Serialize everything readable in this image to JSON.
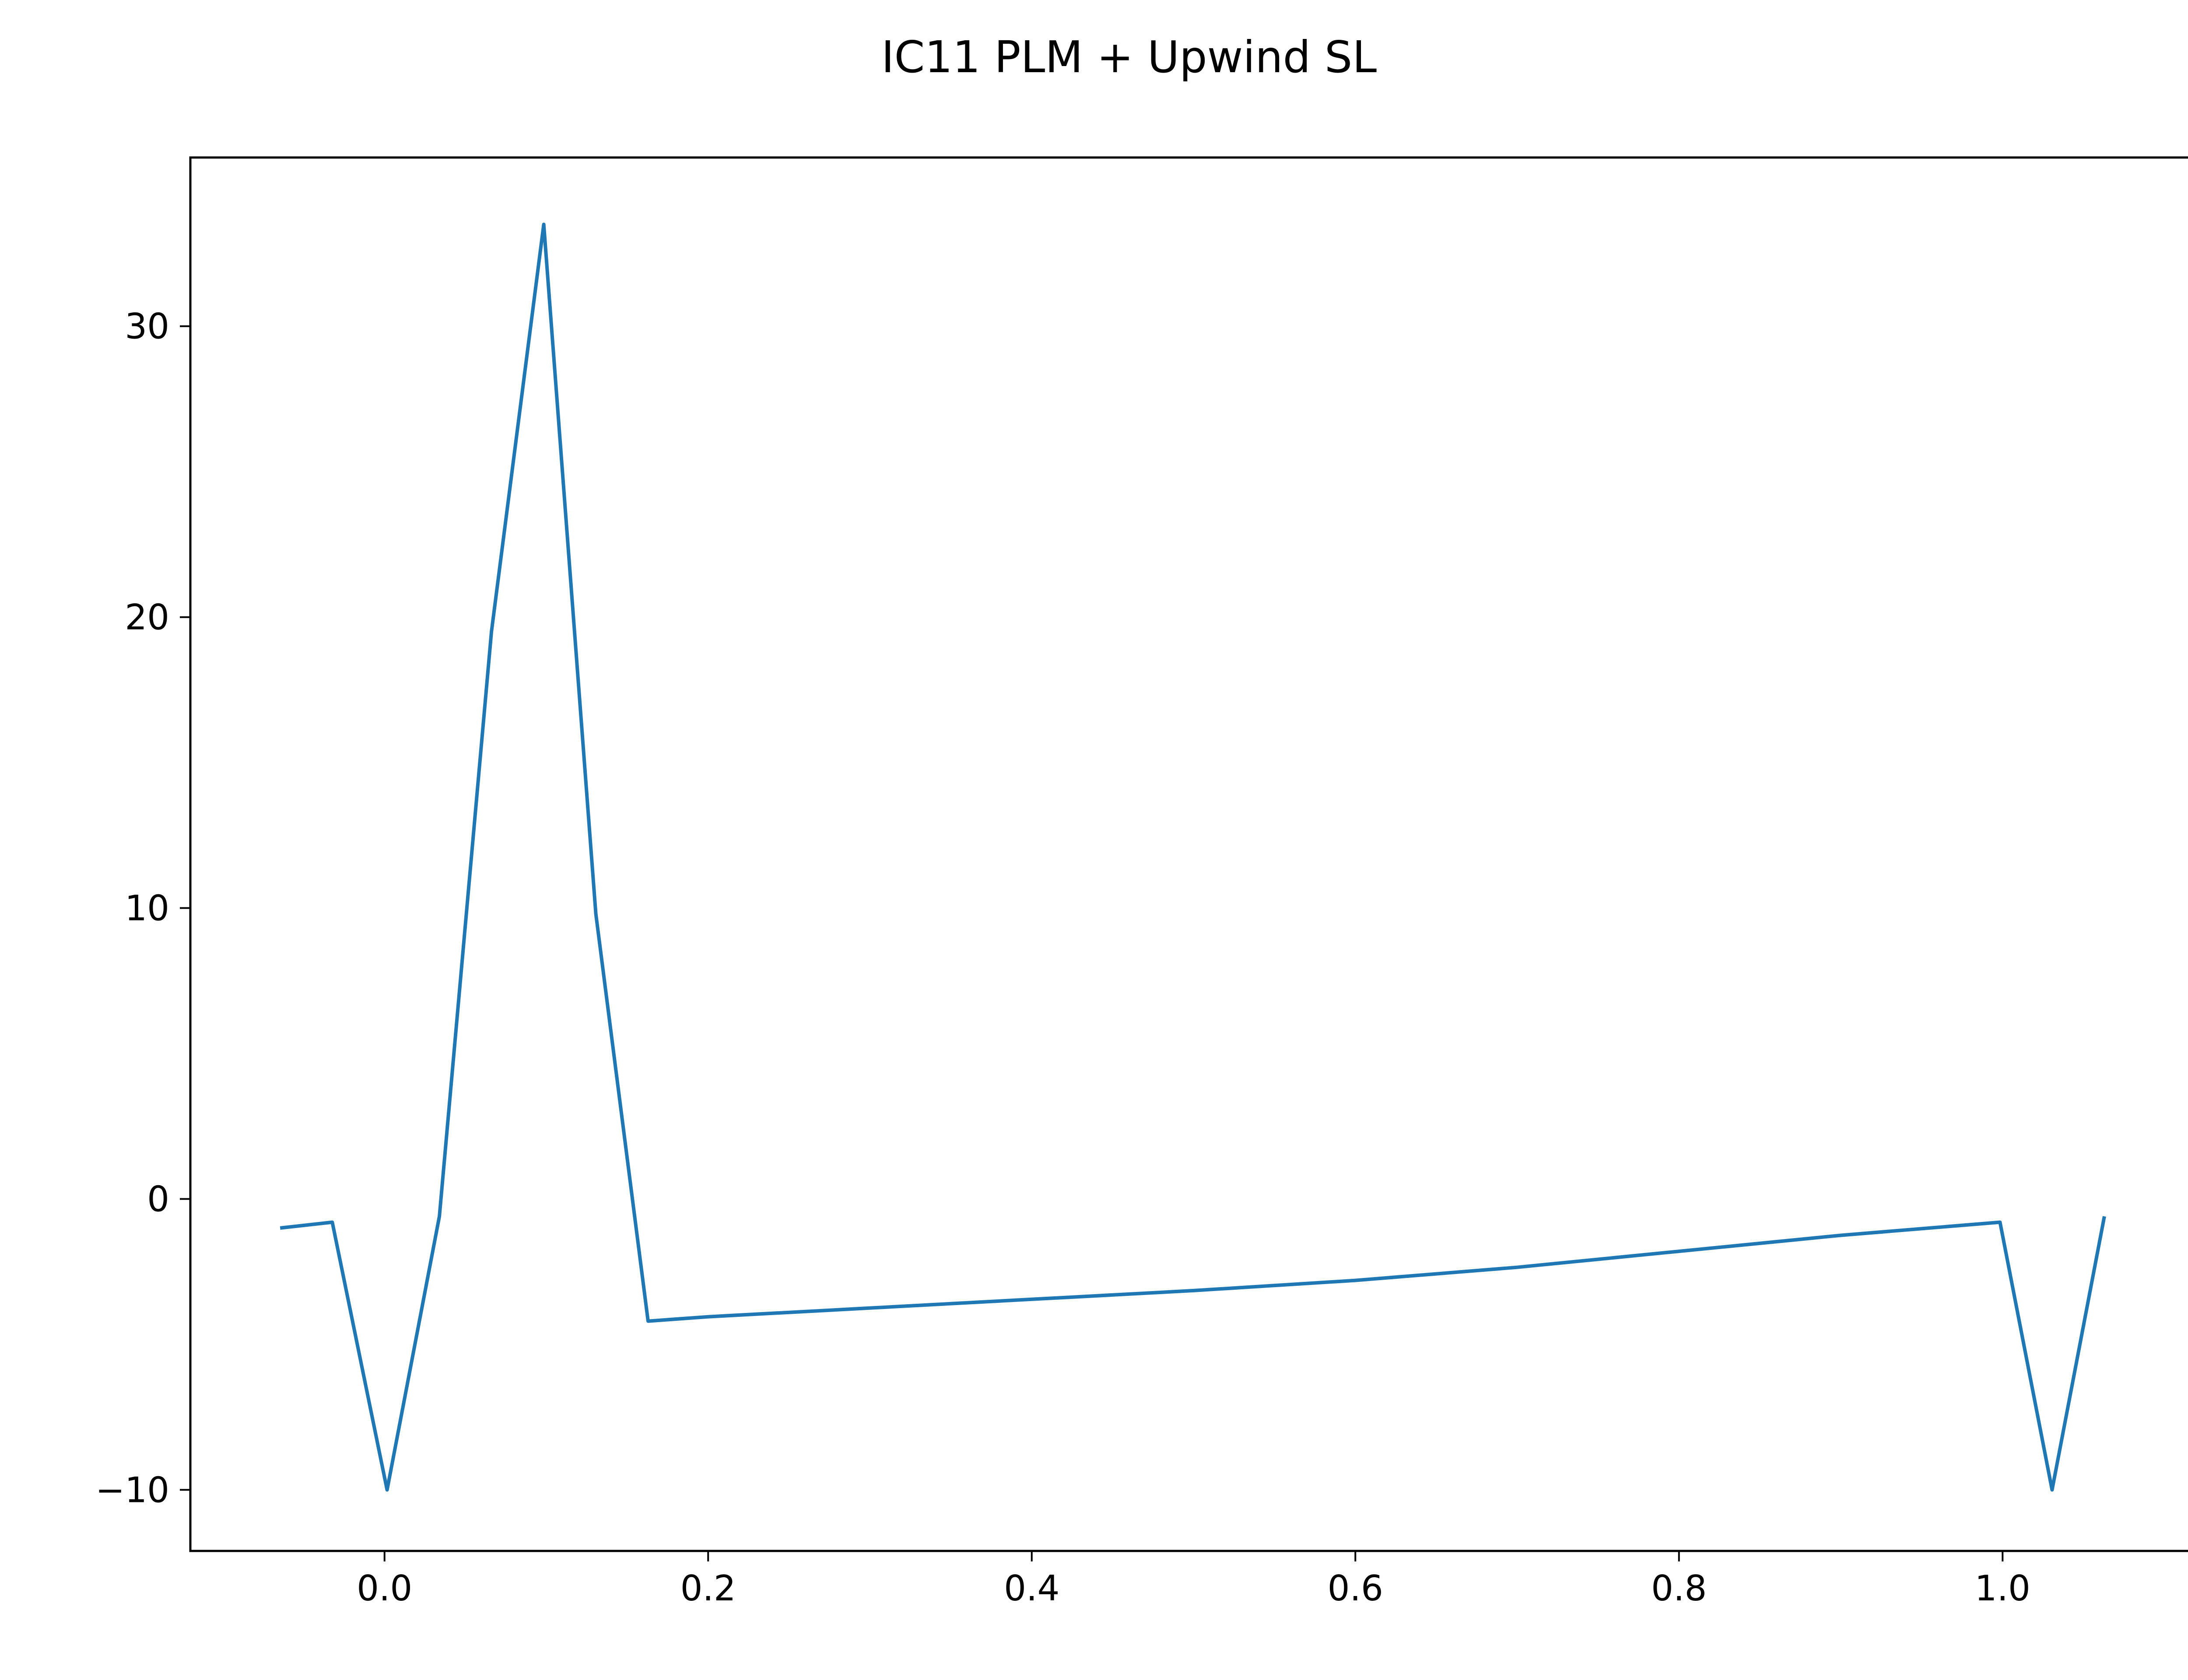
{
  "chart_data": {
    "type": "line",
    "title": "IC11 PLM + Upwind SL",
    "xlabel": "",
    "ylabel": "",
    "xlim": [
      -0.12,
      1.12
    ],
    "ylim": [
      -12.1,
      35.8
    ],
    "xticks": [
      0.0,
      0.2,
      0.4,
      0.6,
      0.8,
      1.0
    ],
    "xtick_labels": [
      "0.0",
      "0.2",
      "0.4",
      "0.6",
      "0.8",
      "1.0"
    ],
    "yticks": [
      -10,
      0,
      10,
      20,
      30
    ],
    "ytick_labels": [
      "−10",
      "0",
      "10",
      "20",
      "30"
    ],
    "grid": false,
    "series": [
      {
        "color": "#1f77b4",
        "x": [
          -0.0645,
          -0.0323,
          0.0016,
          0.0339,
          0.0661,
          0.0984,
          0.1306,
          0.1629,
          0.2,
          0.3,
          0.4,
          0.5,
          0.6,
          0.7,
          0.8,
          0.9,
          0.9984,
          1.0306,
          1.0629
        ],
        "y": [
          -1.0,
          -0.8,
          -10.0,
          -0.6,
          19.5,
          33.5,
          9.8,
          -4.2,
          -4.05,
          -3.75,
          -3.45,
          -3.15,
          -2.8,
          -2.35,
          -1.8,
          -1.25,
          -0.8,
          -10.0,
          -0.6
        ]
      }
    ]
  }
}
